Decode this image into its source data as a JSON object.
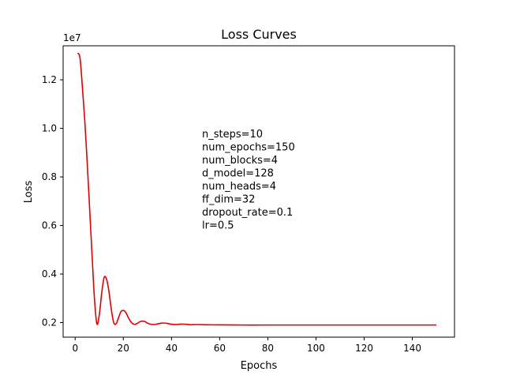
{
  "chart_data": {
    "type": "line",
    "title": "Loss Curves",
    "xlabel": "Epochs",
    "ylabel": "Loss",
    "y_offset_label": "1e7",
    "xlim": [
      -5,
      157.5
    ],
    "ylim": [
      1.4,
      13.4
    ],
    "x_ticks": [
      0,
      20,
      40,
      60,
      80,
      100,
      120,
      140
    ],
    "y_ticks": [
      2,
      4,
      6,
      8,
      10,
      12
    ],
    "y_tick_labels": [
      "0.2",
      "0.4",
      "0.6",
      "0.8",
      "1.0",
      "1.2"
    ],
    "y_units": "1e6 (axis shows 1e7 multiplier)",
    "grid": false,
    "legend": "none",
    "annotation_lines": [
      "n_steps=10",
      "num_epochs=150",
      "num_blocks=4",
      "d_model=128",
      "num_heads=4",
      "ff_dim=32",
      "dropout_rate=0.1",
      "lr=0.5"
    ],
    "series": [
      {
        "color": "#e00000",
        "x": [
          1,
          2,
          3,
          4,
          5,
          6,
          7,
          8,
          9,
          10,
          11,
          12,
          13,
          14,
          15,
          16,
          17,
          18,
          19,
          20,
          21,
          22,
          23,
          24,
          25,
          26,
          27,
          28,
          29,
          30,
          32,
          34,
          36,
          38,
          40,
          42,
          44,
          46,
          48,
          50,
          55,
          60,
          70,
          80,
          100,
          120,
          150
        ],
        "y": [
          13.1,
          12.9,
          11.7,
          10.3,
          8.6,
          6.7,
          4.8,
          3.0,
          1.95,
          2.3,
          3.2,
          3.85,
          3.8,
          3.3,
          2.55,
          2.0,
          1.95,
          2.2,
          2.45,
          2.5,
          2.42,
          2.22,
          2.05,
          1.95,
          1.93,
          1.98,
          2.04,
          2.06,
          2.04,
          1.98,
          1.92,
          1.94,
          1.98,
          1.97,
          1.93,
          1.92,
          1.94,
          1.93,
          1.91,
          1.92,
          1.91,
          1.905,
          1.9,
          1.9,
          1.9,
          1.9,
          1.9
        ]
      }
    ]
  }
}
